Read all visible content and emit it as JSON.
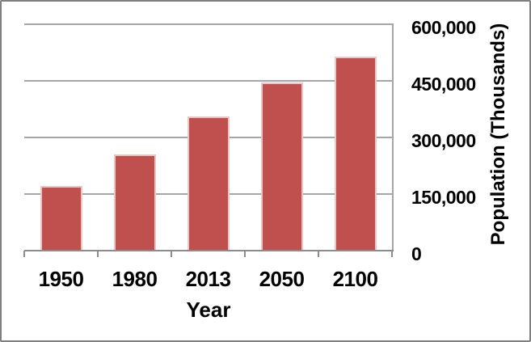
{
  "chart_data": {
    "type": "bar",
    "categories": [
      "1950",
      "1980",
      "2013",
      "2050",
      "2100"
    ],
    "values": [
      171000,
      255000,
      355000,
      445000,
      514000
    ],
    "title": "",
    "xlabel": "Year",
    "ylabel": "Population (Thousands)",
    "ylim": [
      0,
      600000
    ],
    "ytick_interval": 150000,
    "ytick_labels": [
      "0",
      "150,000",
      "300,000",
      "450,000",
      "600,000"
    ],
    "legend": "none",
    "grid": true,
    "colors": {
      "bar_fill": "#c0504d",
      "bar_border": "#ebc6c4",
      "gridline": "#a6a6a6",
      "axis_line": "#8c8c8c",
      "text": "#000000",
      "outer_border": "#7f7f7f",
      "background": "#ffffff"
    }
  }
}
